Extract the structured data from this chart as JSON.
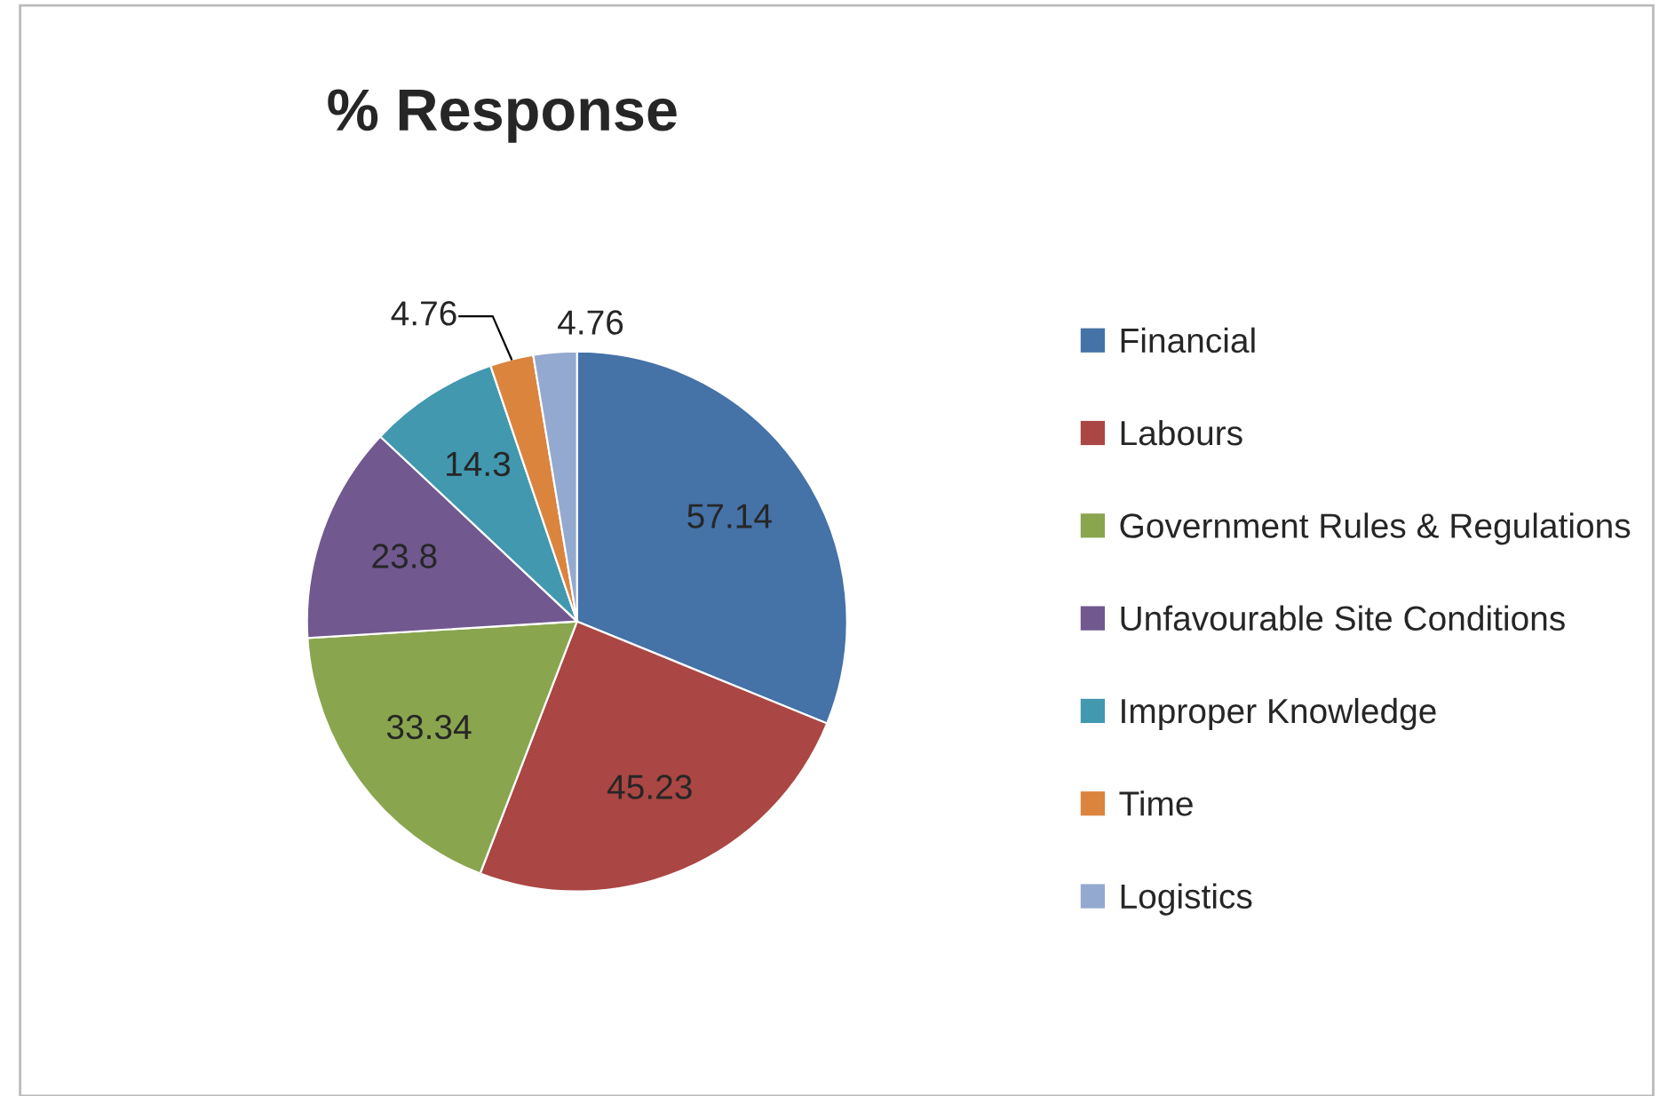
{
  "chart_data": {
    "type": "pie",
    "title": "% Response",
    "categories": [
      "Financial",
      "Labours",
      "Government Rules & Regulations",
      "Unfavourable Site Conditions",
      "Improper Knowledge",
      "Time",
      "Logistics"
    ],
    "values": [
      57.14,
      45.23,
      33.34,
      23.8,
      14.3,
      4.76,
      4.76
    ],
    "colors": [
      "#4572a7",
      "#aa4643",
      "#89a54e",
      "#71588f",
      "#4198af",
      "#db843d",
      "#93a9cf"
    ],
    "data_labels": true,
    "legend": "right"
  }
}
